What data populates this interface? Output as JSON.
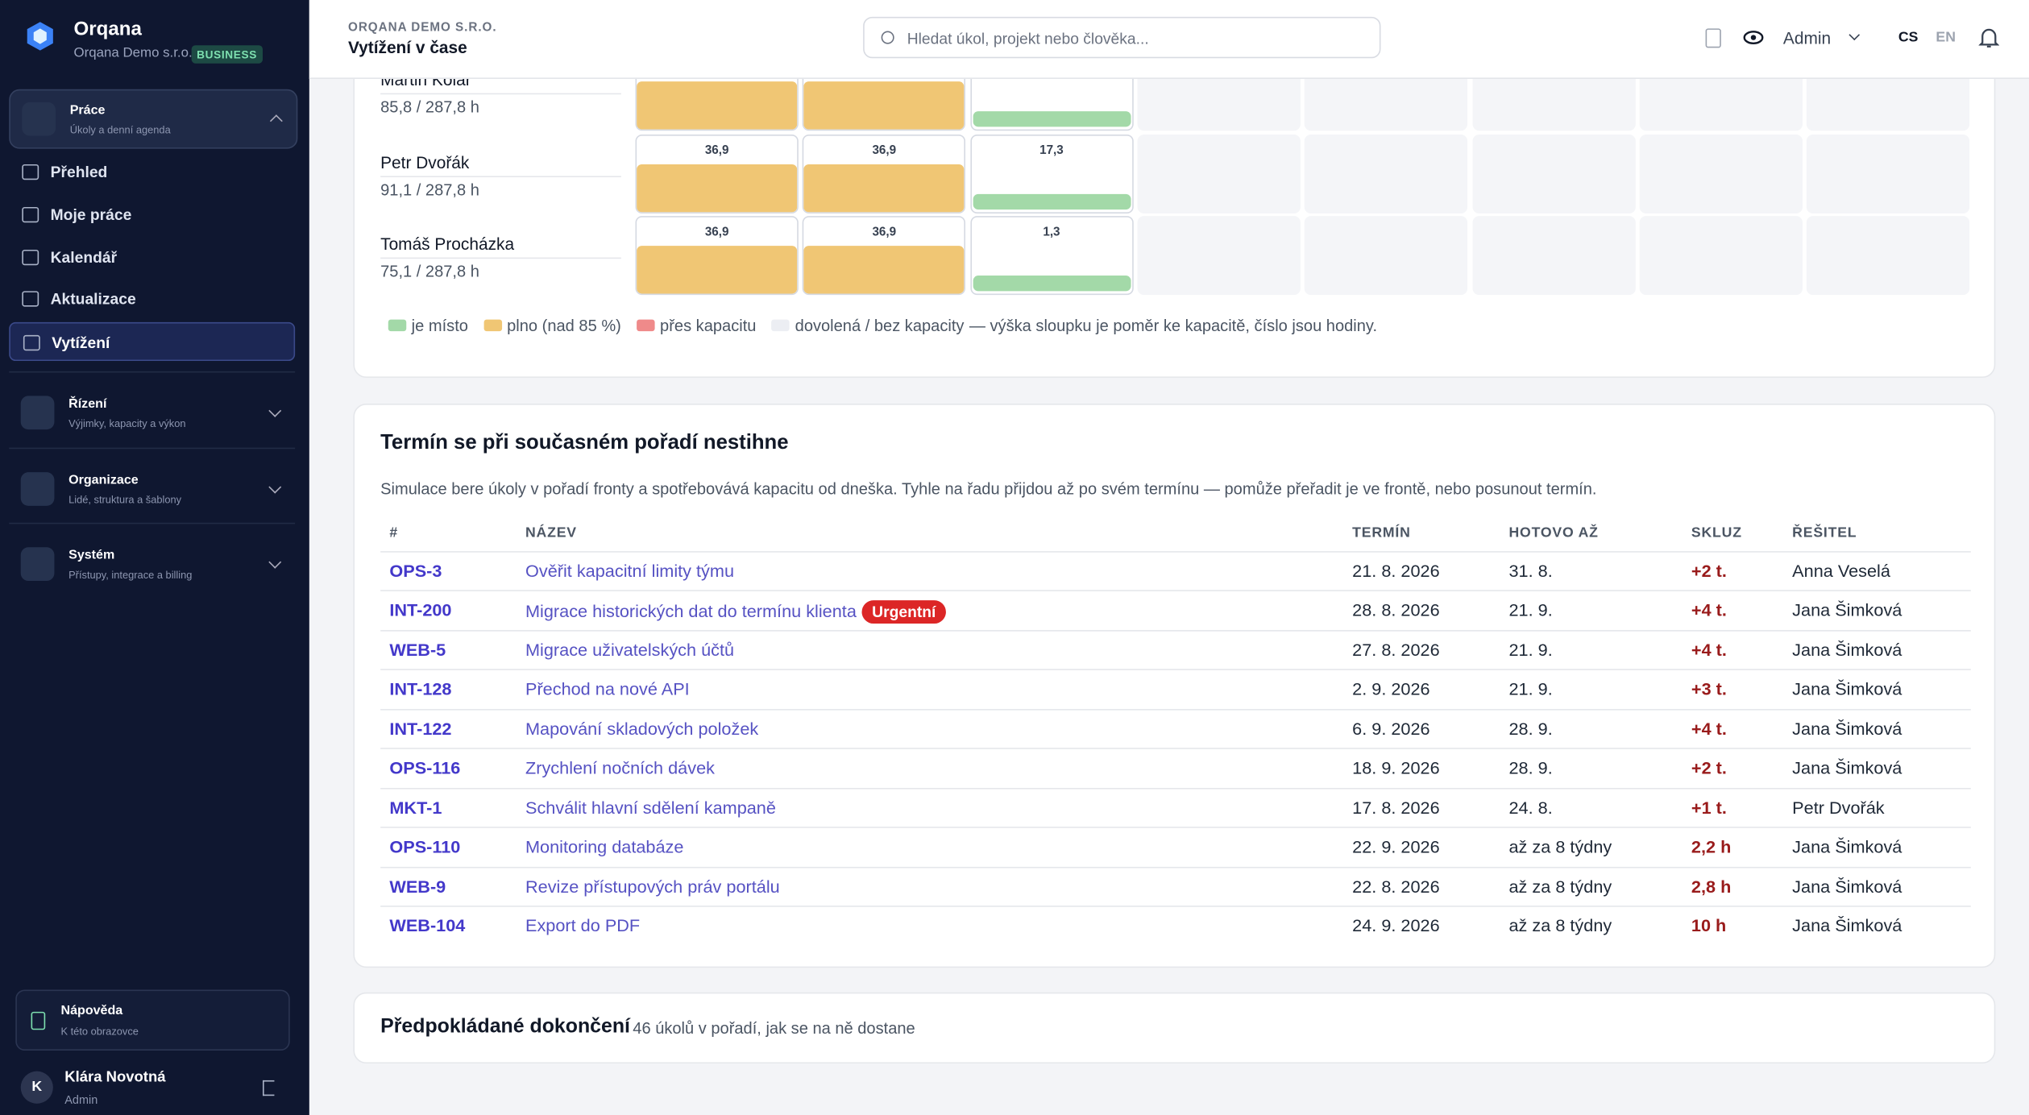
{
  "sidebar": {
    "brand": "Orqana",
    "org": "Orqana Demo s.r.o.",
    "badge": "BUSINESS",
    "work_group": {
      "title": "Práce",
      "subtitle": "Úkoly a denní agenda"
    },
    "nav": [
      "Přehled",
      "Moje práce",
      "Kalendář",
      "Aktualizace",
      "Vytížení"
    ],
    "active": "Vytížení",
    "groups": [
      {
        "title": "Řízení",
        "subtitle": "Výjimky, kapacity a výkon"
      },
      {
        "title": "Organizace",
        "subtitle": "Lidé, struktura a šablony"
      },
      {
        "title": "Systém",
        "subtitle": "Přístupy, integrace a billing"
      }
    ],
    "help": {
      "title": "Nápověda",
      "subtitle": "K této obrazovce"
    },
    "user": {
      "initial": "K",
      "name": "Klára Novotná",
      "role": "Admin"
    }
  },
  "header": {
    "org": "ORQANA DEMO S.R.O.",
    "title": "Vytížení v čase",
    "search": "Hledat úkol, projekt nebo člověka...",
    "role": "Admin",
    "languages": [
      "CS",
      "EN"
    ],
    "active_language": "CS"
  },
  "capacity": {
    "rows": [
      {
        "name": "Martin Kolář",
        "hours": "85,8 / 287,8 h",
        "cells": [
          {
            "status": "full"
          },
          {
            "status": "full"
          },
          {
            "status": "free"
          }
        ]
      },
      {
        "name": "Petr Dvořák",
        "hours": "91,1 / 287,8 h",
        "cells": [
          {
            "status": "full",
            "label": "36,9"
          },
          {
            "status": "full",
            "label": "36,9"
          },
          {
            "status": "free",
            "label": "17,3"
          }
        ]
      },
      {
        "name": "Tomáš Procházka",
        "hours": "75,1 / 287,8 h",
        "cells": [
          {
            "status": "full",
            "label": "36,9"
          },
          {
            "status": "full",
            "label": "36,9"
          },
          {
            "status": "free",
            "label": "1,3"
          }
        ]
      }
    ],
    "legend": [
      {
        "name": "je místo",
        "color": "#a3d9a8"
      },
      {
        "name": "plno (nad 85 %)",
        "color": "#f0c674"
      },
      {
        "name": "přes kapacitu",
        "color": "#ef8a8a"
      },
      {
        "name": "dovolená / bez kapacity",
        "color": "#eceef3"
      }
    ],
    "note": "— výška sloupku je poměr ke kapacitě, číslo jsou hodiny."
  },
  "late": {
    "title": "Termín se při současném pořadí nestihne",
    "description": "Simulace bere úkoly v pořadí fronty a spotřebovává kapacitu od dneška. Tyhle na řadu přijdou až po svém termínu — pomůže přeřadit je ve frontě, nebo posunout termín.",
    "columns": [
      "#",
      "NÁZEV",
      "TERMÍN",
      "HOTOVO AŽ",
      "SKLUZ",
      "ŘEŠITEL"
    ],
    "rows": [
      [
        "OPS-3",
        "Ověřit kapacitní limity týmu",
        "21. 8. 2026",
        "31. 8.",
        "+2 t.",
        "Anna Veselá"
      ],
      [
        "INT-200",
        "Migrace historických dat do termínu klienta",
        "28. 8. 2026",
        "21. 9.",
        "+4 t.",
        "Jana Šimková"
      ],
      [
        "WEB-5",
        "Migrace uživatelských účtů",
        "27. 8. 2026",
        "21. 9.",
        "+4 t.",
        "Jana Šimková"
      ],
      [
        "INT-128",
        "Přechod na nové API",
        "2. 9. 2026",
        "21. 9.",
        "+3 t.",
        "Jana Šimková"
      ],
      [
        "INT-122",
        "Mapování skladových položek",
        "6. 9. 2026",
        "28. 9.",
        "+4 t.",
        "Jana Šimková"
      ],
      [
        "OPS-116",
        "Zrychlení nočních dávek",
        "18. 9. 2026",
        "28. 9.",
        "+2 t.",
        "Jana Šimková"
      ],
      [
        "MKT-1",
        "Schválit hlavní sdělení kampaně",
        "17. 8. 2026",
        "24. 8.",
        "+1 t.",
        "Petr Dvořák"
      ],
      [
        "OPS-110",
        "Monitoring databáze",
        "22. 9. 2026",
        "až za 8 týdny",
        "2,2 h",
        "Jana Šimková"
      ],
      [
        "WEB-9",
        "Revize přístupových práv portálu",
        "22. 8. 2026",
        "až za 8 týdny",
        "2,8 h",
        "Jana Šimková"
      ],
      [
        "WEB-104",
        "Export do PDF",
        "24. 9. 2026",
        "až za 8 týdny",
        "10 h",
        "Jana Šimková"
      ]
    ],
    "badges": [
      {
        "row": 1,
        "label": "Urgentní"
      }
    ]
  },
  "forecast": {
    "title": "Předpokládané dokončení",
    "subtitle": "46 úkolů v pořadí, jak se na ně dostane"
  }
}
